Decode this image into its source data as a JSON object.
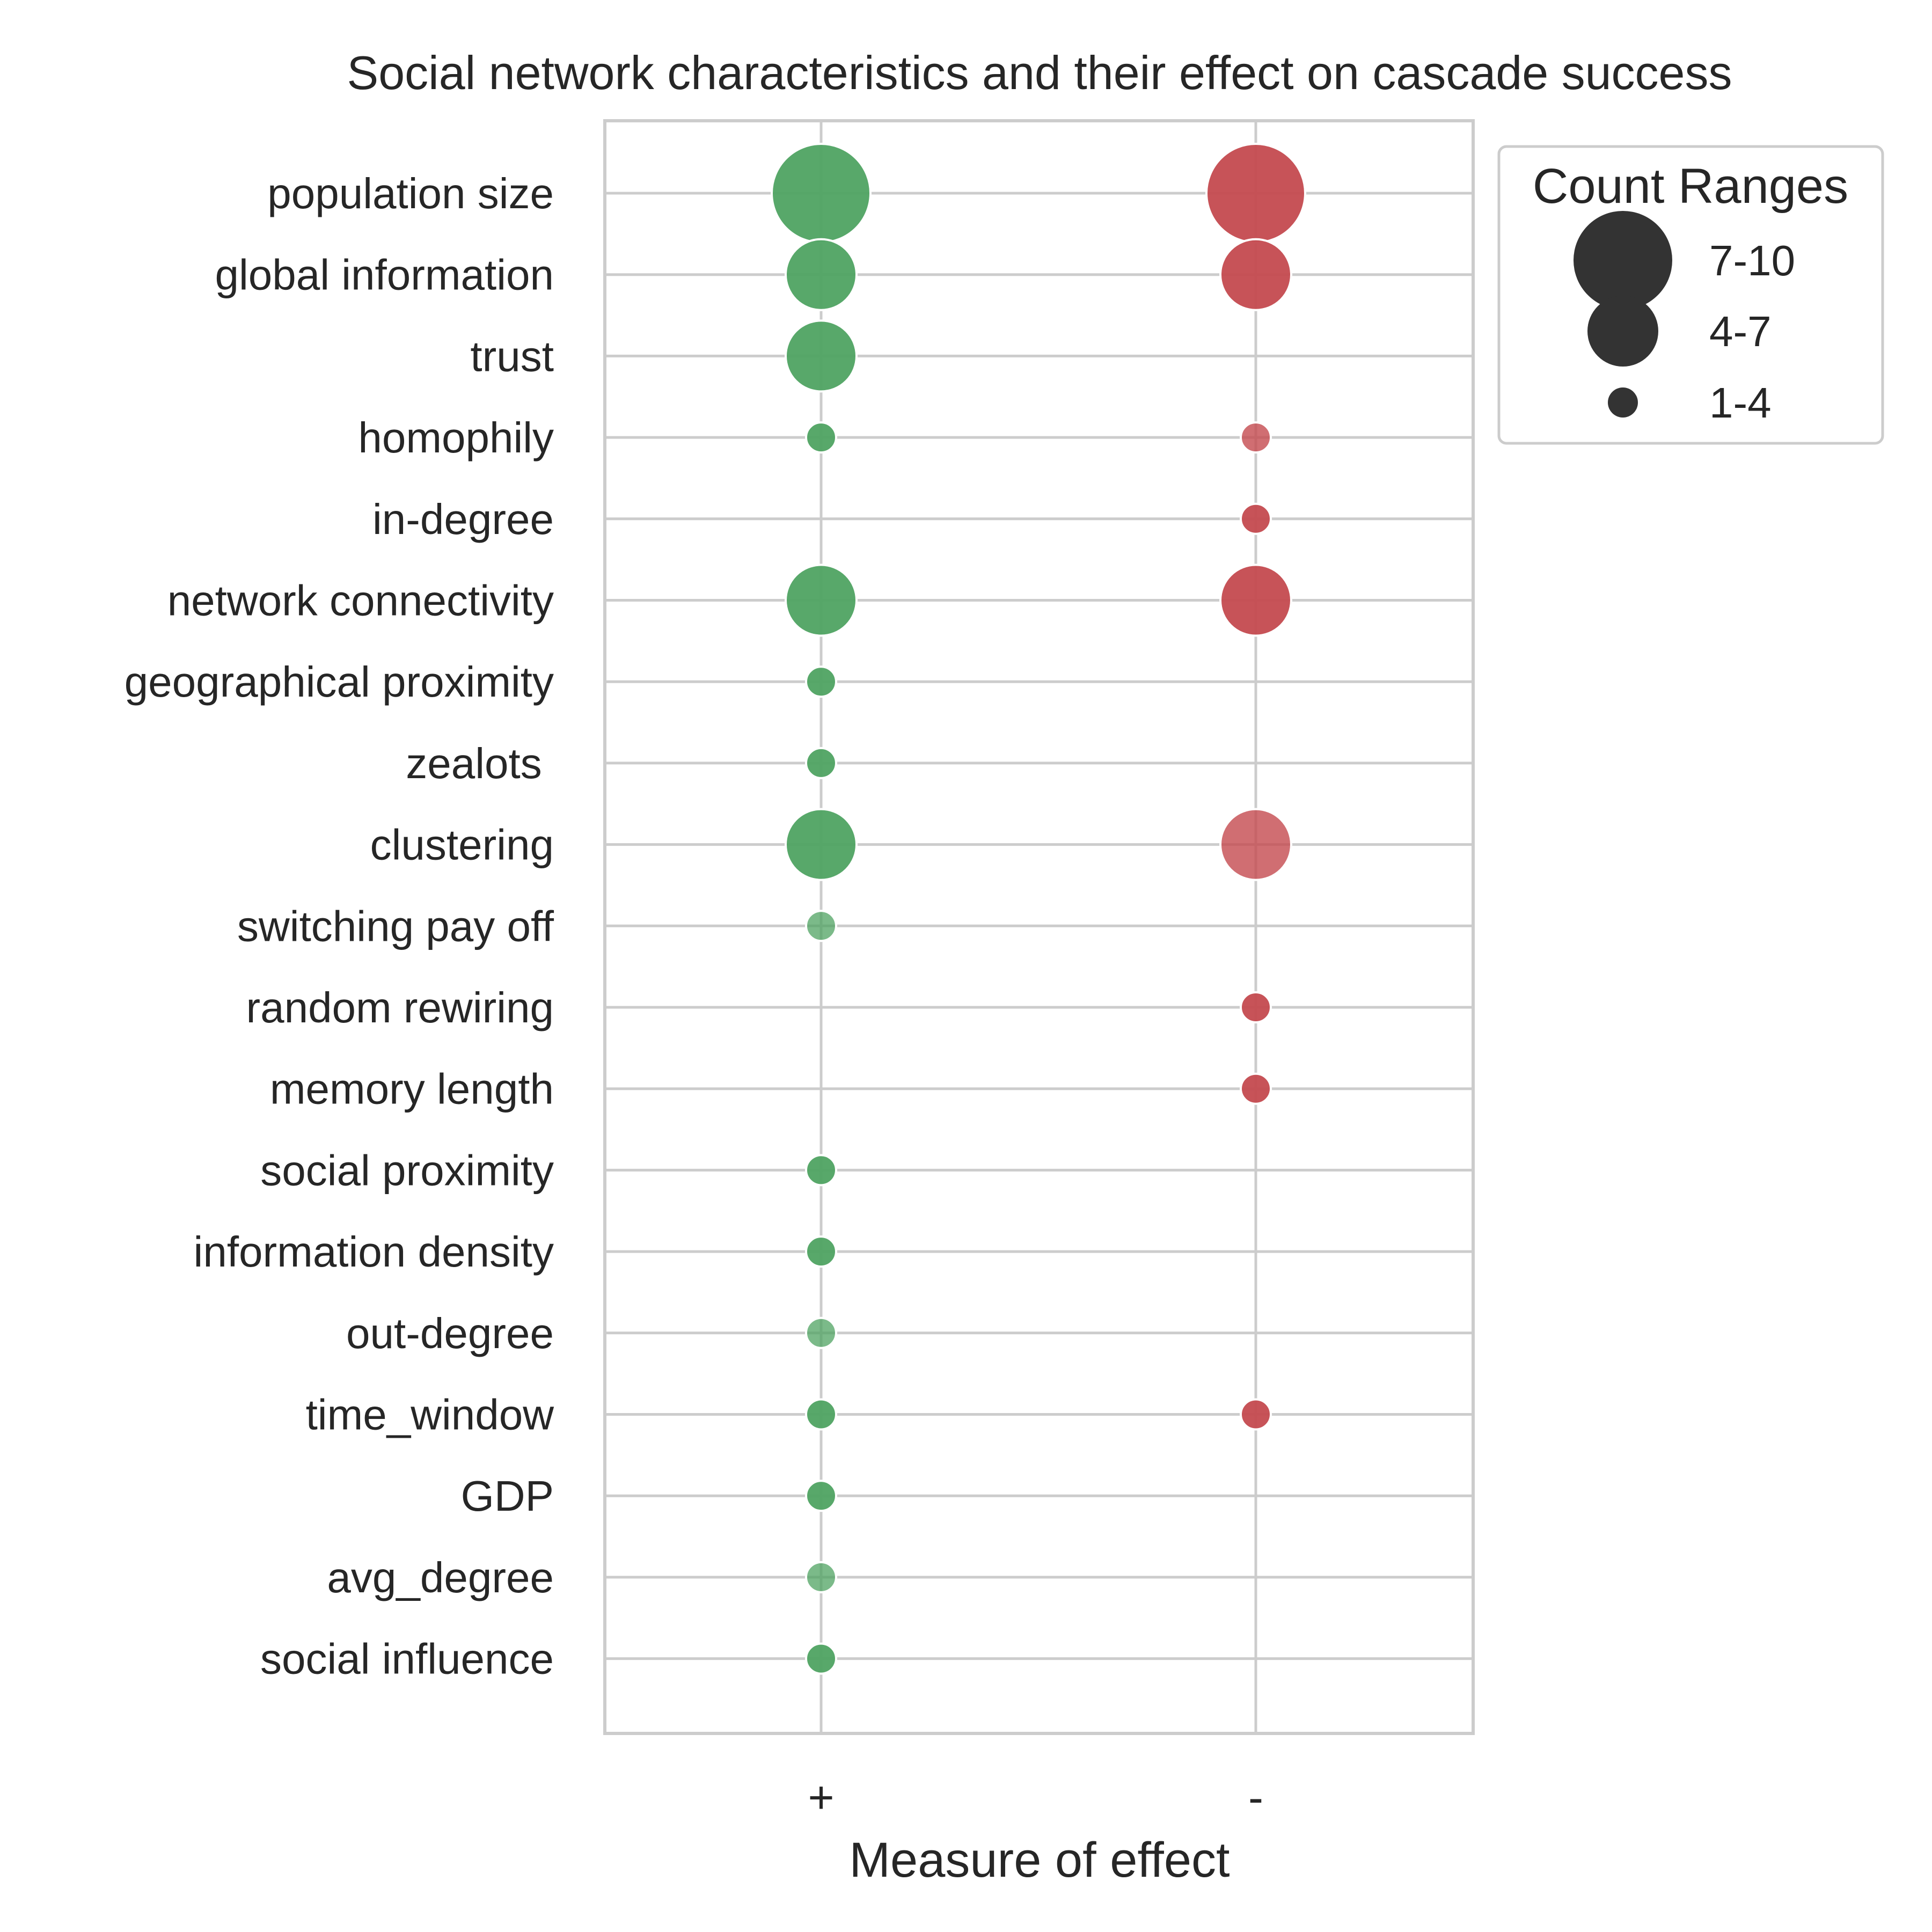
{
  "chart_data": {
    "type": "scatter",
    "title": "Social network characteristics and their effect on cascade success",
    "xlabel": "Measure of effect",
    "ylabel": "",
    "x_categories": [
      "+",
      "-"
    ],
    "y_categories": [
      "population size",
      "global information",
      "trust",
      "homophily",
      "in-degree",
      "network connectivity",
      "geographical proximity",
      "zealots ",
      "clustering",
      "switching pay off",
      "random rewiring",
      "memory length",
      "social proximity",
      "information density",
      "out-degree",
      "time_window",
      "GDP",
      "avg_degree",
      "social influence"
    ],
    "grid": true,
    "series": [
      {
        "x": "+",
        "color": "#4fa362",
        "points": [
          {
            "y": "population size",
            "count_range": "7-10",
            "alpha": 0.95
          },
          {
            "y": "global information",
            "count_range": "4-7",
            "alpha": 0.95
          },
          {
            "y": "trust",
            "count_range": "4-7",
            "alpha": 0.95
          },
          {
            "y": "homophily",
            "count_range": "1-4",
            "alpha": 0.95
          },
          {
            "y": "network connectivity",
            "count_range": "4-7",
            "alpha": 0.95
          },
          {
            "y": "geographical proximity",
            "count_range": "1-4",
            "alpha": 0.95
          },
          {
            "y": "zealots ",
            "count_range": "1-4",
            "alpha": 0.95
          },
          {
            "y": "clustering",
            "count_range": "4-7",
            "alpha": 0.95
          },
          {
            "y": "switching pay off",
            "count_range": "1-4",
            "alpha": 0.75
          },
          {
            "y": "social proximity",
            "count_range": "1-4",
            "alpha": 0.95
          },
          {
            "y": "information density",
            "count_range": "1-4",
            "alpha": 0.95
          },
          {
            "y": "out-degree",
            "count_range": "1-4",
            "alpha": 0.75
          },
          {
            "y": "time_window",
            "count_range": "1-4",
            "alpha": 0.95
          },
          {
            "y": "GDP",
            "count_range": "1-4",
            "alpha": 0.95
          },
          {
            "y": "avg_degree",
            "count_range": "1-4",
            "alpha": 0.75
          },
          {
            "y": "social influence",
            "count_range": "1-4",
            "alpha": 0.95
          }
        ]
      },
      {
        "x": "-",
        "color": "#c44a4f",
        "points": [
          {
            "y": "population size",
            "count_range": "7-10",
            "alpha": 0.95
          },
          {
            "y": "global information",
            "count_range": "4-7",
            "alpha": 0.95
          },
          {
            "y": "homophily",
            "count_range": "1-4",
            "alpha": 0.8
          },
          {
            "y": "in-degree",
            "count_range": "1-4",
            "alpha": 0.95
          },
          {
            "y": "network connectivity",
            "count_range": "4-7",
            "alpha": 0.95
          },
          {
            "y": "clustering",
            "count_range": "4-7",
            "alpha": 0.8
          },
          {
            "y": "random rewiring",
            "count_range": "1-4",
            "alpha": 0.95
          },
          {
            "y": "memory length",
            "count_range": "1-4",
            "alpha": 0.95
          },
          {
            "y": "time_window",
            "count_range": "1-4",
            "alpha": 0.95
          }
        ]
      }
    ],
    "legend": {
      "title": "Count Ranges",
      "placement": "outside-top-right",
      "color": "#333333",
      "entries": [
        "7-10",
        "4-7",
        "1-4"
      ]
    }
  }
}
